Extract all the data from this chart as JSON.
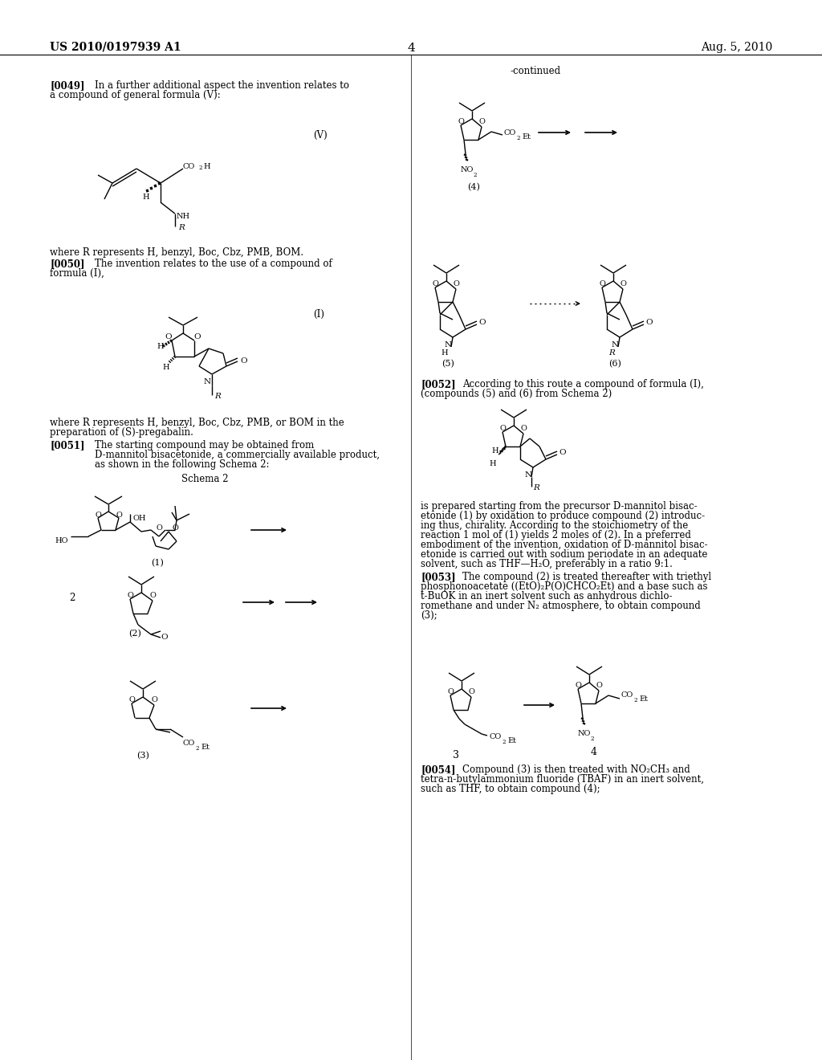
{
  "page_number": "4",
  "header_left": "US 2010/0197939 A1",
  "header_right": "Aug. 5, 2010",
  "bg": "#ffffff",
  "lw": 1.0
}
